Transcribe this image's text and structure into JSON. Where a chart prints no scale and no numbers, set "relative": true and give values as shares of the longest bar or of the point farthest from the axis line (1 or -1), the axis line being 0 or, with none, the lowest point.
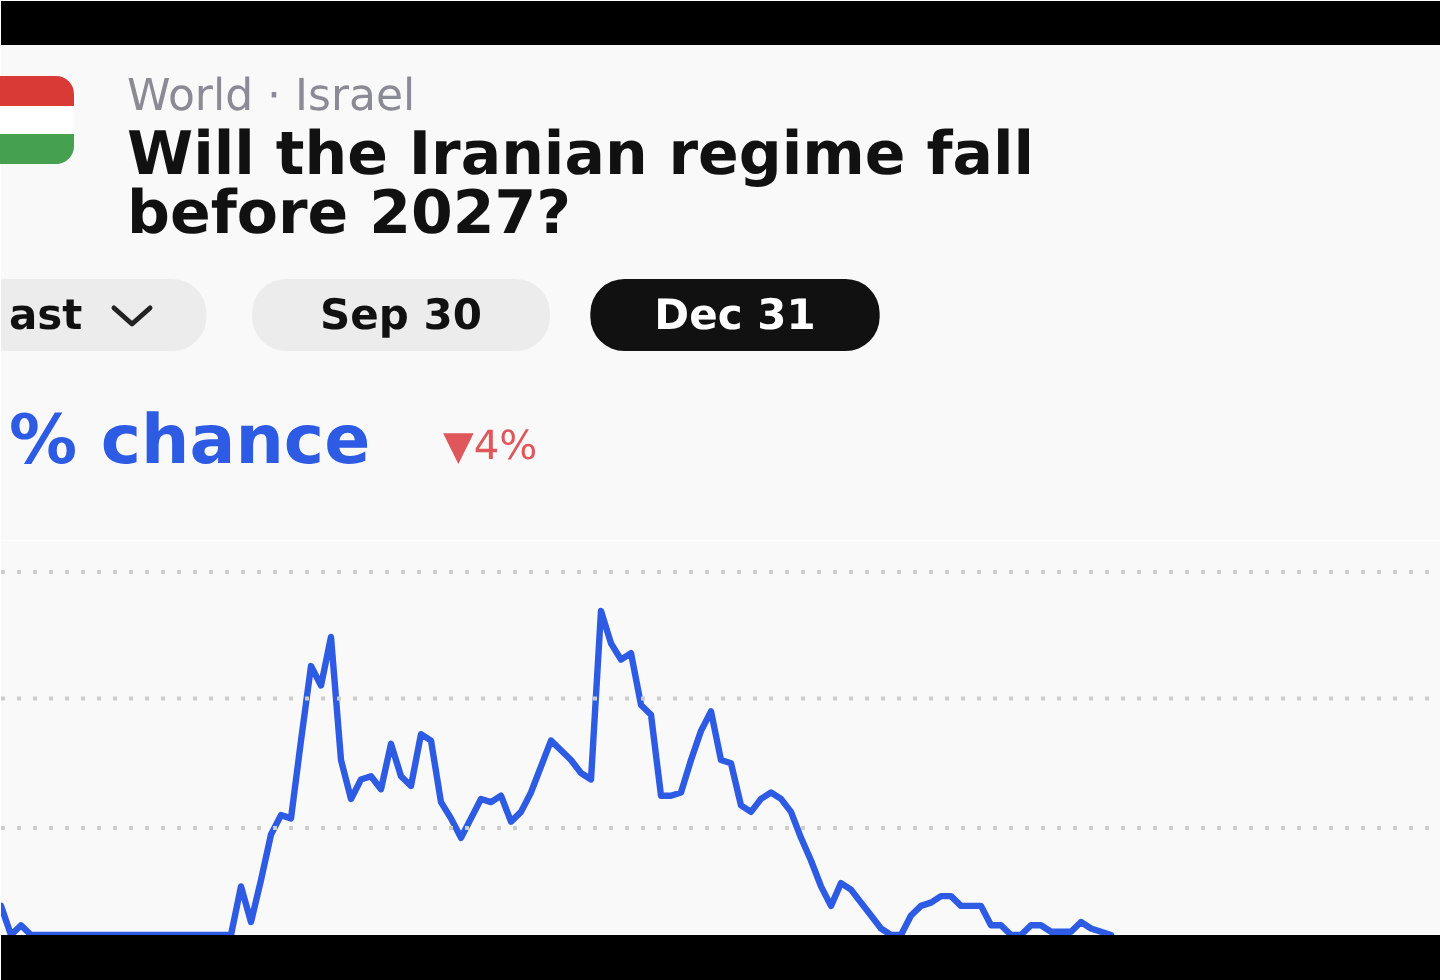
{
  "chart_data": {
    "type": "line",
    "title": "Will the Iranian regime fall before 2027?",
    "subtitle": "World · Israel",
    "annotations": [
      "ast",
      "Sep 30",
      "Dec 31",
      "% chance",
      "▼4%"
    ],
    "categories": [
      null,
      null,
      null,
      null,
      null,
      null,
      null,
      null,
      null,
      null,
      null,
      null,
      null,
      null,
      null,
      null,
      null,
      null,
      null,
      null,
      null,
      null,
      null,
      null,
      null,
      null,
      null,
      null,
      null,
      null,
      null,
      null,
      null,
      null,
      null,
      null,
      null,
      null,
      null,
      null,
      null,
      null,
      null,
      null,
      null,
      null,
      null,
      null,
      null,
      null,
      null,
      null,
      null,
      null,
      null,
      null,
      null,
      null,
      null,
      null,
      null,
      null,
      null,
      null,
      null,
      null,
      null,
      null,
      null,
      null,
      null,
      null,
      null,
      null,
      null,
      null,
      null,
      null,
      null,
      null,
      null,
      null,
      null,
      null,
      null,
      null,
      null,
      null,
      null,
      null,
      null,
      null,
      null,
      null,
      null,
      null,
      null,
      null,
      null,
      null,
      null,
      null,
      null,
      null,
      null,
      null,
      null,
      null,
      null,
      null,
      null,
      null
    ],
    "values": [
      0.09,
      0.0,
      0.03,
      0.0,
      0.0,
      0.0,
      0.0,
      0.0,
      0.0,
      0.0,
      0.0,
      0.0,
      0.0,
      0.0,
      0.0,
      0.0,
      0.0,
      0.0,
      0.0,
      0.0,
      0.0,
      0.0,
      0.0,
      0.0,
      0.15,
      0.04,
      0.17,
      0.31,
      0.37,
      0.36,
      0.6,
      0.83,
      0.77,
      0.92,
      0.54,
      0.42,
      0.48,
      0.49,
      0.45,
      0.59,
      0.49,
      0.46,
      0.62,
      0.6,
      0.41,
      0.36,
      0.3,
      0.36,
      0.42,
      0.41,
      0.43,
      0.35,
      0.38,
      0.44,
      0.52,
      0.6,
      0.57,
      0.54,
      0.5,
      0.48,
      1.0,
      0.9,
      0.85,
      0.87,
      0.71,
      0.68,
      0.43,
      0.43,
      0.44,
      0.54,
      0.63,
      0.69,
      0.54,
      0.53,
      0.4,
      0.38,
      0.42,
      0.44,
      0.42,
      0.38,
      0.3,
      0.23,
      0.15,
      0.09,
      0.16,
      0.14,
      0.1,
      0.06,
      0.02,
      0.0,
      0.0,
      0.06,
      0.09,
      0.1,
      0.12,
      0.12,
      0.09,
      0.09,
      0.09,
      0.03,
      0.03,
      0.0,
      0.0,
      0.03,
      0.03,
      0.01,
      0.01,
      0.01,
      0.04,
      0.02,
      0.01,
      0.0
    ],
    "color": "#2d5be3",
    "relative": true,
    "line_style": "solid",
    "ref_lines": [
      {
        "axis": "y",
        "value": 1.12,
        "color": "#cdcdcd",
        "line_style": "dotted"
      },
      {
        "axis": "y",
        "value": 0.73,
        "color": "#cdcdcd",
        "line_style": "dotted"
      },
      {
        "axis": "y",
        "value": 0.33,
        "color": "#cdcdcd",
        "line_style": "dotted"
      }
    ]
  }
}
